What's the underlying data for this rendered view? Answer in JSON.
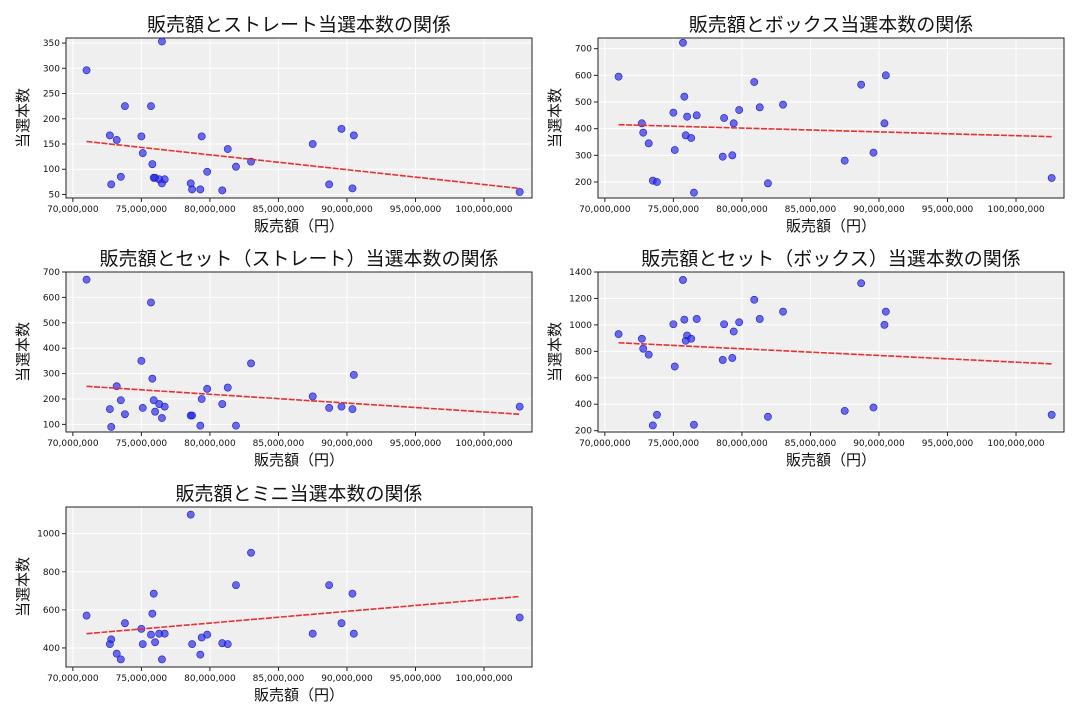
{
  "chart_data": [
    {
      "type": "scatter",
      "title": "販売額とストレート当選本数の関係",
      "xlabel": "販売額（円）",
      "ylabel": "当選本数",
      "xlim": [
        69500000,
        103500000
      ],
      "ylim": [
        43,
        360
      ],
      "xticks": [
        "70,000,000",
        "75,000,000",
        "80,000,000",
        "85,000,000",
        "90,000,000",
        "95,000,000",
        "100,000,000"
      ],
      "yticks": [
        "50",
        "100",
        "150",
        "200",
        "250",
        "300",
        "350"
      ],
      "ytick_values": [
        50,
        100,
        150,
        200,
        250,
        300,
        350
      ],
      "grid": true,
      "points": [
        [
          71000000,
          296
        ],
        [
          72700000,
          167
        ],
        [
          72800000,
          70
        ],
        [
          73200000,
          158
        ],
        [
          73500000,
          85
        ],
        [
          73800000,
          225
        ],
        [
          75000000,
          165
        ],
        [
          75100000,
          132
        ],
        [
          75700000,
          225
        ],
        [
          75800000,
          110
        ],
        [
          75900000,
          83
        ],
        [
          76000000,
          83
        ],
        [
          76300000,
          80
        ],
        [
          76500000,
          353
        ],
        [
          76500000,
          72
        ],
        [
          76700000,
          80
        ],
        [
          78600000,
          72
        ],
        [
          78700000,
          60
        ],
        [
          79300000,
          60
        ],
        [
          79400000,
          165
        ],
        [
          79800000,
          95
        ],
        [
          80900000,
          58
        ],
        [
          81300000,
          140
        ],
        [
          81900000,
          105
        ],
        [
          83000000,
          115
        ],
        [
          87500000,
          150
        ],
        [
          88700000,
          70
        ],
        [
          89600000,
          180
        ],
        [
          90400000,
          62
        ],
        [
          90500000,
          167
        ],
        [
          102600000,
          55
        ]
      ],
      "trend": [
        [
          71000000,
          155
        ],
        [
          102600000,
          62
        ]
      ]
    },
    {
      "type": "scatter",
      "title": "販売額とボックス当選本数の関係",
      "xlabel": "販売額（円）",
      "ylabel": "当選本数",
      "xlim": [
        69500000,
        103500000
      ],
      "ylim": [
        140,
        740
      ],
      "xticks": [
        "70,000,000",
        "75,000,000",
        "80,000,000",
        "85,000,000",
        "90,000,000",
        "95,000,000",
        "100,000,000"
      ],
      "yticks": [
        "200",
        "300",
        "400",
        "500",
        "600",
        "700"
      ],
      "ytick_values": [
        200,
        300,
        400,
        500,
        600,
        700
      ],
      "grid": true,
      "points": [
        [
          71000000,
          595
        ],
        [
          72700000,
          420
        ],
        [
          72800000,
          385
        ],
        [
          73200000,
          345
        ],
        [
          73500000,
          205
        ],
        [
          73800000,
          200
        ],
        [
          75000000,
          460
        ],
        [
          75100000,
          320
        ],
        [
          75700000,
          722
        ],
        [
          75800000,
          520
        ],
        [
          75900000,
          375
        ],
        [
          76000000,
          445
        ],
        [
          76300000,
          365
        ],
        [
          76500000,
          160
        ],
        [
          76700000,
          450
        ],
        [
          78600000,
          295
        ],
        [
          78700000,
          440
        ],
        [
          79300000,
          300
        ],
        [
          79400000,
          420
        ],
        [
          79800000,
          470
        ],
        [
          80900000,
          575
        ],
        [
          81300000,
          480
        ],
        [
          81900000,
          195
        ],
        [
          83000000,
          490
        ],
        [
          87500000,
          280
        ],
        [
          88700000,
          565
        ],
        [
          89600000,
          310
        ],
        [
          90400000,
          420
        ],
        [
          90500000,
          600
        ],
        [
          102600000,
          215
        ]
      ],
      "trend": [
        [
          71000000,
          415
        ],
        [
          102600000,
          370
        ]
      ]
    },
    {
      "type": "scatter",
      "title": "販売額とセット（ストレート）当選本数の関係",
      "xlabel": "販売額（円）",
      "ylabel": "当選本数",
      "xlim": [
        69500000,
        103500000
      ],
      "ylim": [
        70,
        700
      ],
      "xticks": [
        "70,000,000",
        "75,000,000",
        "80,000,000",
        "85,000,000",
        "90,000,000",
        "95,000,000",
        "100,000,000"
      ],
      "yticks": [
        "100",
        "200",
        "300",
        "400",
        "500",
        "600",
        "700"
      ],
      "ytick_values": [
        100,
        200,
        300,
        400,
        500,
        600,
        700
      ],
      "grid": true,
      "points": [
        [
          71000000,
          670
        ],
        [
          72700000,
          160
        ],
        [
          72800000,
          90
        ],
        [
          73200000,
          250
        ],
        [
          73500000,
          195
        ],
        [
          73800000,
          140
        ],
        [
          75000000,
          350
        ],
        [
          75100000,
          165
        ],
        [
          75700000,
          580
        ],
        [
          75800000,
          280
        ],
        [
          75900000,
          195
        ],
        [
          76000000,
          150
        ],
        [
          76300000,
          180
        ],
        [
          76500000,
          125
        ],
        [
          76700000,
          170
        ],
        [
          78600000,
          135
        ],
        [
          78700000,
          135
        ],
        [
          79300000,
          95
        ],
        [
          79400000,
          200
        ],
        [
          79800000,
          240
        ],
        [
          80900000,
          180
        ],
        [
          81300000,
          245
        ],
        [
          81900000,
          95
        ],
        [
          83000000,
          340
        ],
        [
          87500000,
          210
        ],
        [
          88700000,
          165
        ],
        [
          89600000,
          170
        ],
        [
          90400000,
          160
        ],
        [
          90500000,
          295
        ],
        [
          102600000,
          170
        ]
      ],
      "trend": [
        [
          71000000,
          250
        ],
        [
          102600000,
          140
        ]
      ]
    },
    {
      "type": "scatter",
      "title": "販売額とセット（ボックス）当選本数の関係",
      "xlabel": "販売額（円）",
      "ylabel": "当選本数",
      "xlim": [
        69500000,
        103500000
      ],
      "ylim": [
        190,
        1400
      ],
      "xticks": [
        "70,000,000",
        "75,000,000",
        "80,000,000",
        "85,000,000",
        "90,000,000",
        "95,000,000",
        "100,000,000"
      ],
      "yticks": [
        "200",
        "400",
        "600",
        "800",
        "1000",
        "1200",
        "1400"
      ],
      "ytick_values": [
        200,
        400,
        600,
        800,
        1000,
        1200,
        1400
      ],
      "grid": true,
      "points": [
        [
          71000000,
          930
        ],
        [
          72700000,
          895
        ],
        [
          72800000,
          820
        ],
        [
          73200000,
          775
        ],
        [
          73500000,
          240
        ],
        [
          73800000,
          320
        ],
        [
          75000000,
          1005
        ],
        [
          75100000,
          685
        ],
        [
          75700000,
          1340
        ],
        [
          75800000,
          1040
        ],
        [
          75900000,
          880
        ],
        [
          76000000,
          920
        ],
        [
          76300000,
          895
        ],
        [
          76500000,
          245
        ],
        [
          76700000,
          1045
        ],
        [
          78600000,
          735
        ],
        [
          78700000,
          1005
        ],
        [
          79300000,
          750
        ],
        [
          79400000,
          950
        ],
        [
          79800000,
          1020
        ],
        [
          80900000,
          1190
        ],
        [
          81300000,
          1045
        ],
        [
          81900000,
          305
        ],
        [
          83000000,
          1100
        ],
        [
          87500000,
          350
        ],
        [
          88700000,
          1315
        ],
        [
          89600000,
          375
        ],
        [
          90400000,
          1000
        ],
        [
          90500000,
          1100
        ],
        [
          102600000,
          320
        ]
      ],
      "trend": [
        [
          71000000,
          865
        ],
        [
          102600000,
          705
        ]
      ]
    },
    {
      "type": "scatter",
      "title": "販売額とミニ当選本数の関係",
      "xlabel": "販売額（円）",
      "ylabel": "当選本数",
      "xlim": [
        69500000,
        103500000
      ],
      "ylim": [
        300,
        1140
      ],
      "xticks": [
        "70,000,000",
        "75,000,000",
        "80,000,000",
        "85,000,000",
        "90,000,000",
        "95,000,000",
        "100,000,000"
      ],
      "yticks": [
        "400",
        "600",
        "800",
        "1000"
      ],
      "ytick_values": [
        400,
        600,
        800,
        1000
      ],
      "grid": true,
      "points": [
        [
          71000000,
          570
        ],
        [
          72700000,
          420
        ],
        [
          72800000,
          445
        ],
        [
          73200000,
          370
        ],
        [
          73500000,
          340
        ],
        [
          73800000,
          530
        ],
        [
          75000000,
          500
        ],
        [
          75100000,
          420
        ],
        [
          75700000,
          470
        ],
        [
          75800000,
          580
        ],
        [
          75900000,
          685
        ],
        [
          76000000,
          430
        ],
        [
          76300000,
          475
        ],
        [
          76500000,
          340
        ],
        [
          76700000,
          475
        ],
        [
          78600000,
          1100
        ],
        [
          78700000,
          420
        ],
        [
          79300000,
          365
        ],
        [
          79400000,
          455
        ],
        [
          79800000,
          470
        ],
        [
          80900000,
          425
        ],
        [
          81300000,
          420
        ],
        [
          81900000,
          730
        ],
        [
          83000000,
          900
        ],
        [
          87500000,
          475
        ],
        [
          88700000,
          730
        ],
        [
          89600000,
          530
        ],
        [
          90400000,
          685
        ],
        [
          90500000,
          475
        ],
        [
          102600000,
          560
        ]
      ],
      "trend": [
        [
          71000000,
          475
        ],
        [
          102600000,
          670
        ]
      ]
    }
  ]
}
